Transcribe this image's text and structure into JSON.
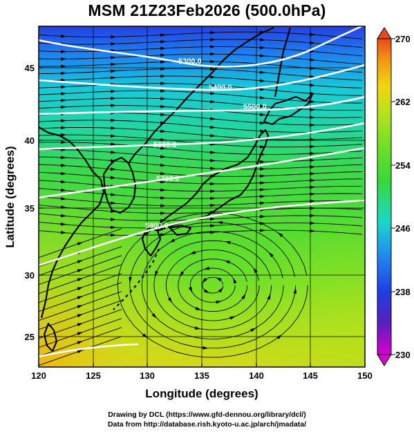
{
  "title": "MSM 21Z23Feb2026 (500.0hPa)",
  "axes": {
    "xlabel": "Longitude (degrees)",
    "ylabel": "Latitude  (degrees)",
    "xticks": [
      "120",
      "125",
      "130",
      "135",
      "140",
      "145",
      "150"
    ],
    "yticks": [
      "25",
      "30",
      "35",
      "40",
      "45"
    ]
  },
  "colorbar": {
    "min": 230,
    "max": 270,
    "labels": [
      "270",
      "262",
      "254",
      "246",
      "238",
      "230"
    ],
    "colors": [
      "#d900d0",
      "#5a1fbf",
      "#1f3fe0",
      "#1fa0ef",
      "#19d9c9",
      "#38d838",
      "#6fe025",
      "#b5e21a",
      "#f2d510",
      "#f29a10",
      "#ea4a1a"
    ]
  },
  "contours": [
    "5300.0",
    "5400.0",
    "5500.0",
    "5600.0",
    "5700.0",
    "5800.0"
  ],
  "credits": {
    "line1": "Drawing by DCL (https://www.gfd-dennou.org/library/dcl/)",
    "line2": "Data from http://database.rish.kyoto-u.ac.jp/arch/jmadata/"
  },
  "chart_data": {
    "type": "map",
    "title": "MSM 21Z23Feb2026 (500.0hPa)",
    "xlabel": "Longitude (degrees)",
    "ylabel": "Latitude  (degrees)",
    "xlim": [
      120,
      150
    ],
    "ylim": [
      22.5,
      47.5
    ],
    "color_scale": {
      "min": 230,
      "max": 270,
      "ticks": [
        230,
        238,
        246,
        254,
        262,
        270
      ]
    },
    "height_contours": [
      5300,
      5400,
      5500,
      5600,
      5700,
      5800
    ],
    "cyclonic_circulation_center": {
      "lon": 136.0,
      "lat": 28.5
    }
  }
}
